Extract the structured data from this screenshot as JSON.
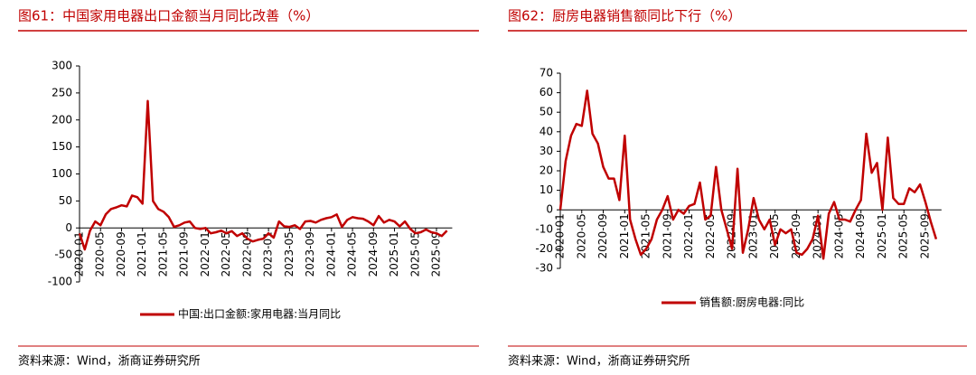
{
  "chart_data": [
    {
      "type": "line",
      "title": "图61：中国家用电器出口金额当月同比改善（%）",
      "source": "资料来源：Wind，浙商证券研究所",
      "categories": [
        "2020-01",
        null,
        null,
        null,
        "2020-05",
        null,
        null,
        null,
        "2020-09",
        null,
        null,
        null,
        "2021-01",
        null,
        null,
        null,
        "2021-05",
        null,
        null,
        null,
        "2021-09",
        null,
        null,
        null,
        "2022-01",
        null,
        null,
        null,
        "2022-05",
        null,
        null,
        null,
        "2022-09",
        null,
        null,
        null,
        "2023-01",
        null,
        null,
        null,
        "2023-05",
        null,
        null,
        null,
        "2023-09",
        null,
        null,
        null,
        "2024-01",
        null,
        null,
        null,
        "2024-05",
        null,
        null,
        null,
        "2024-09",
        null,
        null,
        null,
        "2025-01",
        null,
        null,
        null,
        "2025-05",
        null,
        null,
        null,
        "2025-09",
        null,
        null
      ],
      "series": [
        {
          "name": "中国:出口金额:家用电器:当月同比",
          "color": "#c00000",
          "values": [
            -10,
            -40,
            -5,
            12,
            5,
            25,
            35,
            38,
            42,
            40,
            60,
            57,
            45,
            235,
            50,
            35,
            30,
            20,
            2,
            5,
            10,
            12,
            0,
            -2,
            0,
            -10,
            -8,
            -5,
            -10,
            -6,
            -15,
            -10,
            -20,
            -25,
            -22,
            -20,
            -10,
            -18,
            12,
            3,
            2,
            5,
            -2,
            12,
            13,
            10,
            15,
            18,
            20,
            25,
            2,
            15,
            20,
            18,
            17,
            12,
            5,
            22,
            10,
            15,
            12,
            3,
            12,
            -2,
            -10,
            -8,
            -3,
            -8,
            -10,
            -15,
            -5
          ]
        }
      ],
      "ylim": [
        -100,
        300
      ],
      "yticks": [
        -100,
        -50,
        0,
        50,
        100,
        150,
        200,
        250,
        300
      ],
      "legend": "bottom"
    },
    {
      "type": "line",
      "title": "图62：厨房电器销售额同比下行（%）",
      "source": "资料来源：Wind，浙商证券研究所",
      "categories": [
        "2020-01",
        null,
        null,
        null,
        "2020-05",
        null,
        null,
        null,
        "2020-09",
        null,
        null,
        null,
        "2021-01",
        null,
        null,
        null,
        "2021-05",
        null,
        null,
        null,
        "2021-09",
        null,
        null,
        null,
        "2022-01",
        null,
        null,
        null,
        "2022-05",
        null,
        null,
        null,
        "2022-09",
        null,
        null,
        null,
        "2023-01",
        null,
        null,
        null,
        "2023-05",
        null,
        null,
        null,
        "2023-09",
        null,
        null,
        null,
        "2024-01",
        null,
        null,
        null,
        "2024-05",
        null,
        null,
        null,
        "2024-09",
        null,
        null,
        null,
        "2025-01",
        null,
        null,
        null,
        "2025-05",
        null,
        null,
        null,
        "2025-09",
        null,
        null
      ],
      "series": [
        {
          "name": "销售额:厨房电器:同比",
          "color": "#c00000",
          "values": [
            0,
            25,
            38,
            44,
            43,
            61,
            39,
            34,
            22,
            16,
            16,
            5,
            38,
            -5,
            -15,
            -23,
            -20,
            -15,
            -5,
            0,
            7,
            -5,
            0,
            -2,
            2,
            3,
            14,
            -5,
            -3,
            22,
            0,
            -10,
            -20,
            21,
            -22,
            -10,
            6,
            -5,
            -10,
            -5,
            -18,
            -10,
            -12,
            -10,
            -22,
            -23,
            -20,
            -15,
            -3,
            -25,
            -2,
            4,
            -5,
            -5,
            -6,
            0,
            5,
            39,
            19,
            24,
            0,
            37,
            6,
            3,
            3,
            11,
            9,
            13,
            4,
            -6,
            -15
          ]
        }
      ],
      "ylim": [
        -30,
        70
      ],
      "yticks": [
        -30,
        -20,
        -10,
        0,
        10,
        20,
        30,
        40,
        50,
        60,
        70
      ],
      "legend": "bottom"
    }
  ]
}
